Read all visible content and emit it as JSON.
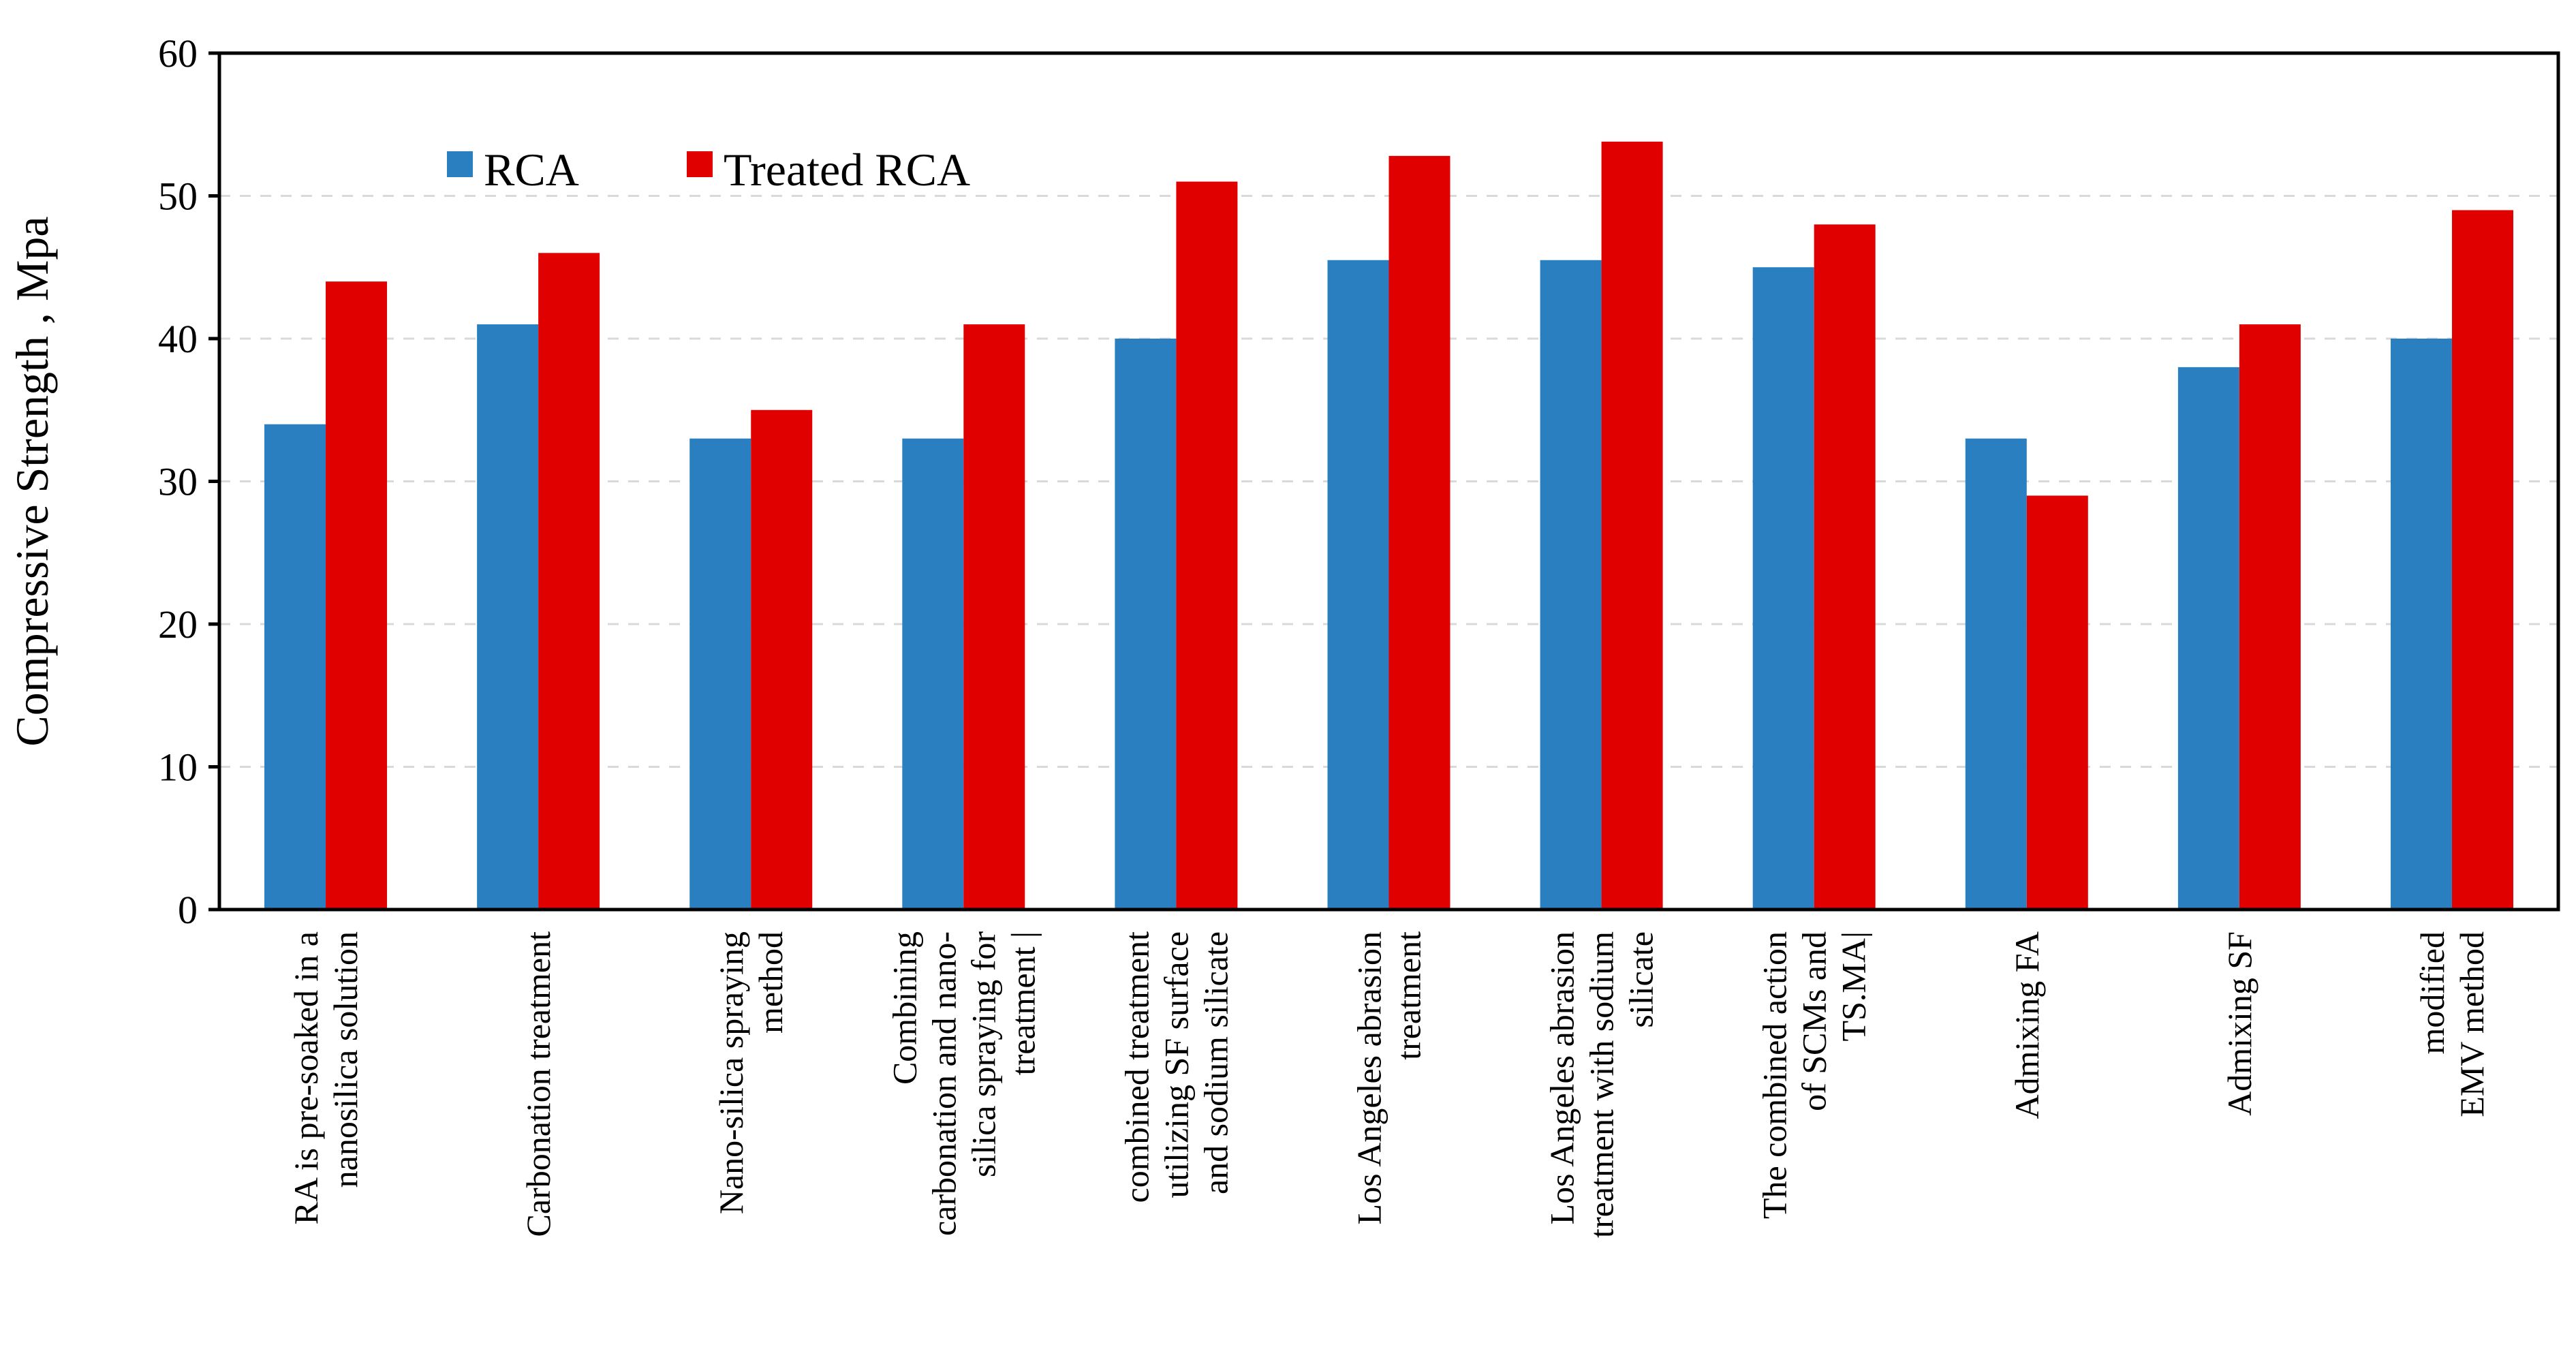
{
  "chart_data": {
    "type": "bar",
    "title": "",
    "xlabel": "",
    "ylabel": "Compressive Strength , Mpa",
    "ylim": [
      0,
      60
    ],
    "yticks": [
      0,
      10,
      20,
      30,
      40,
      50,
      60
    ],
    "grid": true,
    "legend_position": "top-left",
    "categories": [
      [
        "RA is pre-soaked in a",
        "nanosilica solution"
      ],
      [
        "Carbonation treatment"
      ],
      [
        "Nano-silica spraying",
        "method"
      ],
      [
        "Combining",
        "carbonation and nano-",
        "silica spraying for",
        "treatment |"
      ],
      [
        "combined treatment",
        "utilizing SF surface",
        "and sodium silicate"
      ],
      [
        "Los Angeles abrasion",
        "treatment"
      ],
      [
        "Los Angeles abrasion",
        "treatment with sodium",
        "silicate"
      ],
      [
        "The combined action",
        "of SCMs and",
        "TS.MA|"
      ],
      [
        "Admixing FA"
      ],
      [
        "Admixing SF"
      ],
      [
        "modified",
        "EMV method"
      ]
    ],
    "series": [
      {
        "name": "RCA",
        "color": "#2a7fc0",
        "values": [
          34,
          41,
          33,
          33,
          40,
          45.5,
          45.5,
          45,
          33,
          38,
          40
        ]
      },
      {
        "name": "Treated RCA",
        "color": "#e00000",
        "values": [
          44,
          46,
          35,
          41,
          51,
          52.8,
          53.8,
          48,
          29,
          41,
          49
        ]
      }
    ]
  }
}
